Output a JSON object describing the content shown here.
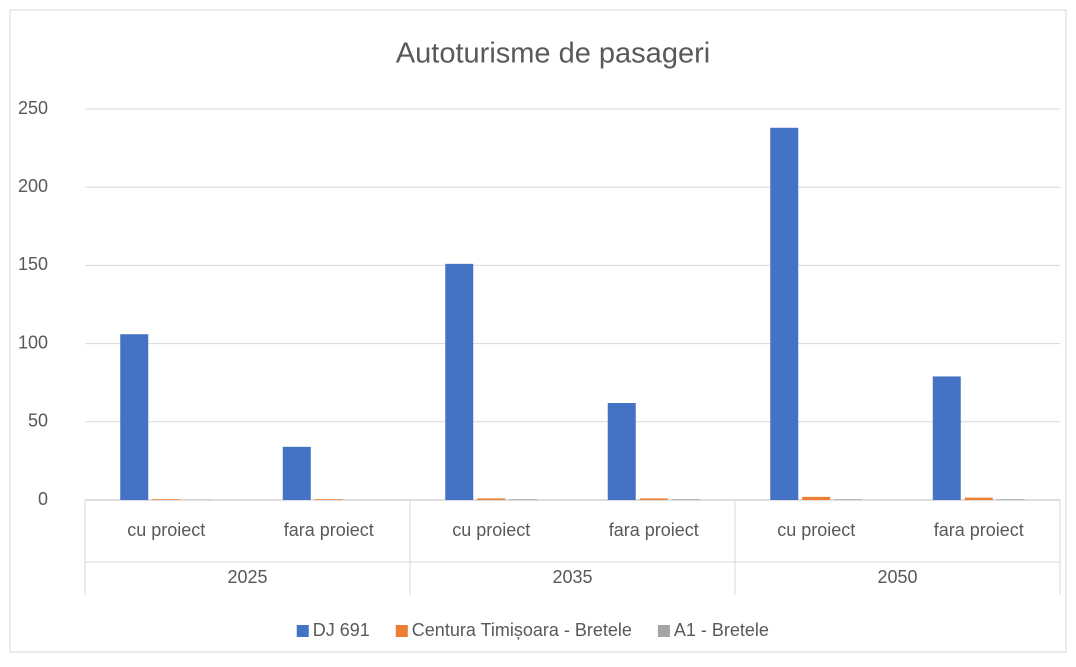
{
  "chart_data": {
    "type": "bar",
    "title": "Autoturisme de pasageri",
    "categories": [
      "cu proiect",
      "fara proiect",
      "cu proiect",
      "fara proiect",
      "cu proiect",
      "fara proiect"
    ],
    "groups": [
      "2025",
      "2035",
      "2050"
    ],
    "series": [
      {
        "name": "DJ 691",
        "color": "#4472c4",
        "values": [
          106,
          34,
          151,
          62,
          238,
          79
        ]
      },
      {
        "name": "Centura Timișoara - Bretele",
        "color": "#ed7d31",
        "values": [
          0.5,
          0.5,
          1,
          1,
          2,
          1.5
        ]
      },
      {
        "name": "A1 - Bretele",
        "color": "#a5a5a5",
        "values": [
          0.3,
          0,
          0.5,
          0.5,
          0.5,
          0.5
        ]
      }
    ],
    "ylim": [
      0,
      250
    ],
    "yticks": [
      0,
      50,
      100,
      150,
      200,
      250
    ],
    "grid": true,
    "legend": "bottom"
  }
}
